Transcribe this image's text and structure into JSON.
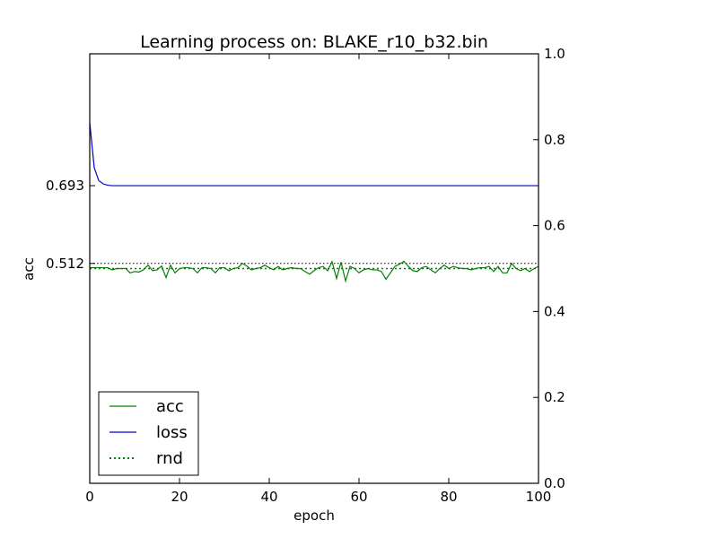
{
  "chart_data": {
    "type": "line",
    "title": "Learning process on: BLAKE_r10_b32.bin",
    "xlabel": "epoch",
    "ylabel": "acc",
    "xlim": [
      0,
      100
    ],
    "ylim": [
      0,
      1.0
    ],
    "x_ticks": [
      "0",
      "20",
      "40",
      "60",
      "80",
      "100"
    ],
    "left_ticks": [
      {
        "value": 0.693,
        "label": "0.693"
      },
      {
        "value": 0.512,
        "label": "0.512"
      }
    ],
    "right_ticks": [
      "0.0",
      "0.2",
      "0.4",
      "0.6",
      "0.8",
      "1.0"
    ],
    "legend_position": "lower-left",
    "series": [
      {
        "name": "acc",
        "color": "#008000",
        "style": "solid",
        "values": [
          0.502,
          0.502,
          0.502,
          0.502,
          0.502,
          0.497,
          0.5,
          0.5,
          0.5,
          0.49,
          0.493,
          0.492,
          0.497,
          0.508,
          0.495,
          0.497,
          0.506,
          0.479,
          0.508,
          0.49,
          0.5,
          0.502,
          0.502,
          0.5,
          0.49,
          0.502,
          0.502,
          0.5,
          0.49,
          0.502,
          0.502,
          0.495,
          0.5,
          0.502,
          0.512,
          0.506,
          0.497,
          0.5,
          0.502,
          0.508,
          0.502,
          0.497,
          0.505,
          0.497,
          0.5,
          0.502,
          0.5,
          0.5,
          0.493,
          0.487,
          0.495,
          0.502,
          0.505,
          0.495,
          0.516,
          0.477,
          0.515,
          0.471,
          0.505,
          0.5,
          0.49,
          0.497,
          0.5,
          0.497,
          0.497,
          0.493,
          0.475,
          0.49,
          0.505,
          0.51,
          0.517,
          0.505,
          0.495,
          0.493,
          0.502,
          0.505,
          0.497,
          0.49,
          0.5,
          0.508,
          0.5,
          0.505,
          0.502,
          0.5,
          0.5,
          0.497,
          0.5,
          0.502,
          0.502,
          0.505,
          0.493,
          0.505,
          0.49,
          0.49,
          0.512,
          0.5,
          0.495,
          0.5,
          0.493,
          0.5,
          0.505
        ]
      },
      {
        "name": "loss",
        "color": "#0000cc",
        "style": "solid",
        "values": [
          0.84,
          0.735,
          0.705,
          0.697,
          0.694,
          0.693,
          0.693,
          0.693,
          0.693,
          0.693,
          0.693,
          0.693,
          0.693,
          0.693,
          0.693,
          0.693,
          0.693,
          0.693,
          0.693,
          0.693,
          0.693,
          0.693,
          0.693,
          0.693,
          0.693,
          0.693,
          0.693,
          0.693,
          0.693,
          0.693,
          0.693,
          0.693,
          0.693,
          0.693,
          0.693,
          0.693,
          0.693,
          0.693,
          0.693,
          0.693,
          0.693,
          0.693,
          0.693,
          0.693,
          0.693,
          0.693,
          0.693,
          0.693,
          0.693,
          0.693,
          0.693,
          0.693,
          0.693,
          0.693,
          0.693,
          0.693,
          0.693,
          0.693,
          0.693,
          0.693,
          0.693,
          0.693,
          0.693,
          0.693,
          0.693,
          0.693,
          0.693,
          0.693,
          0.693,
          0.693,
          0.693,
          0.693,
          0.693,
          0.693,
          0.693,
          0.693,
          0.693,
          0.693,
          0.693,
          0.693,
          0.693,
          0.693,
          0.693,
          0.693,
          0.693,
          0.693,
          0.693,
          0.693,
          0.693,
          0.693,
          0.693,
          0.693,
          0.693,
          0.693,
          0.693,
          0.693,
          0.693,
          0.693,
          0.693,
          0.693,
          0.693
        ]
      },
      {
        "name": "rnd",
        "color": "#008000",
        "style": "dotted",
        "values": [
          0.5,
          0.5
        ]
      }
    ],
    "reference_lines": [
      {
        "value": 0.512,
        "color": "#000000",
        "style": "dotted"
      }
    ]
  }
}
